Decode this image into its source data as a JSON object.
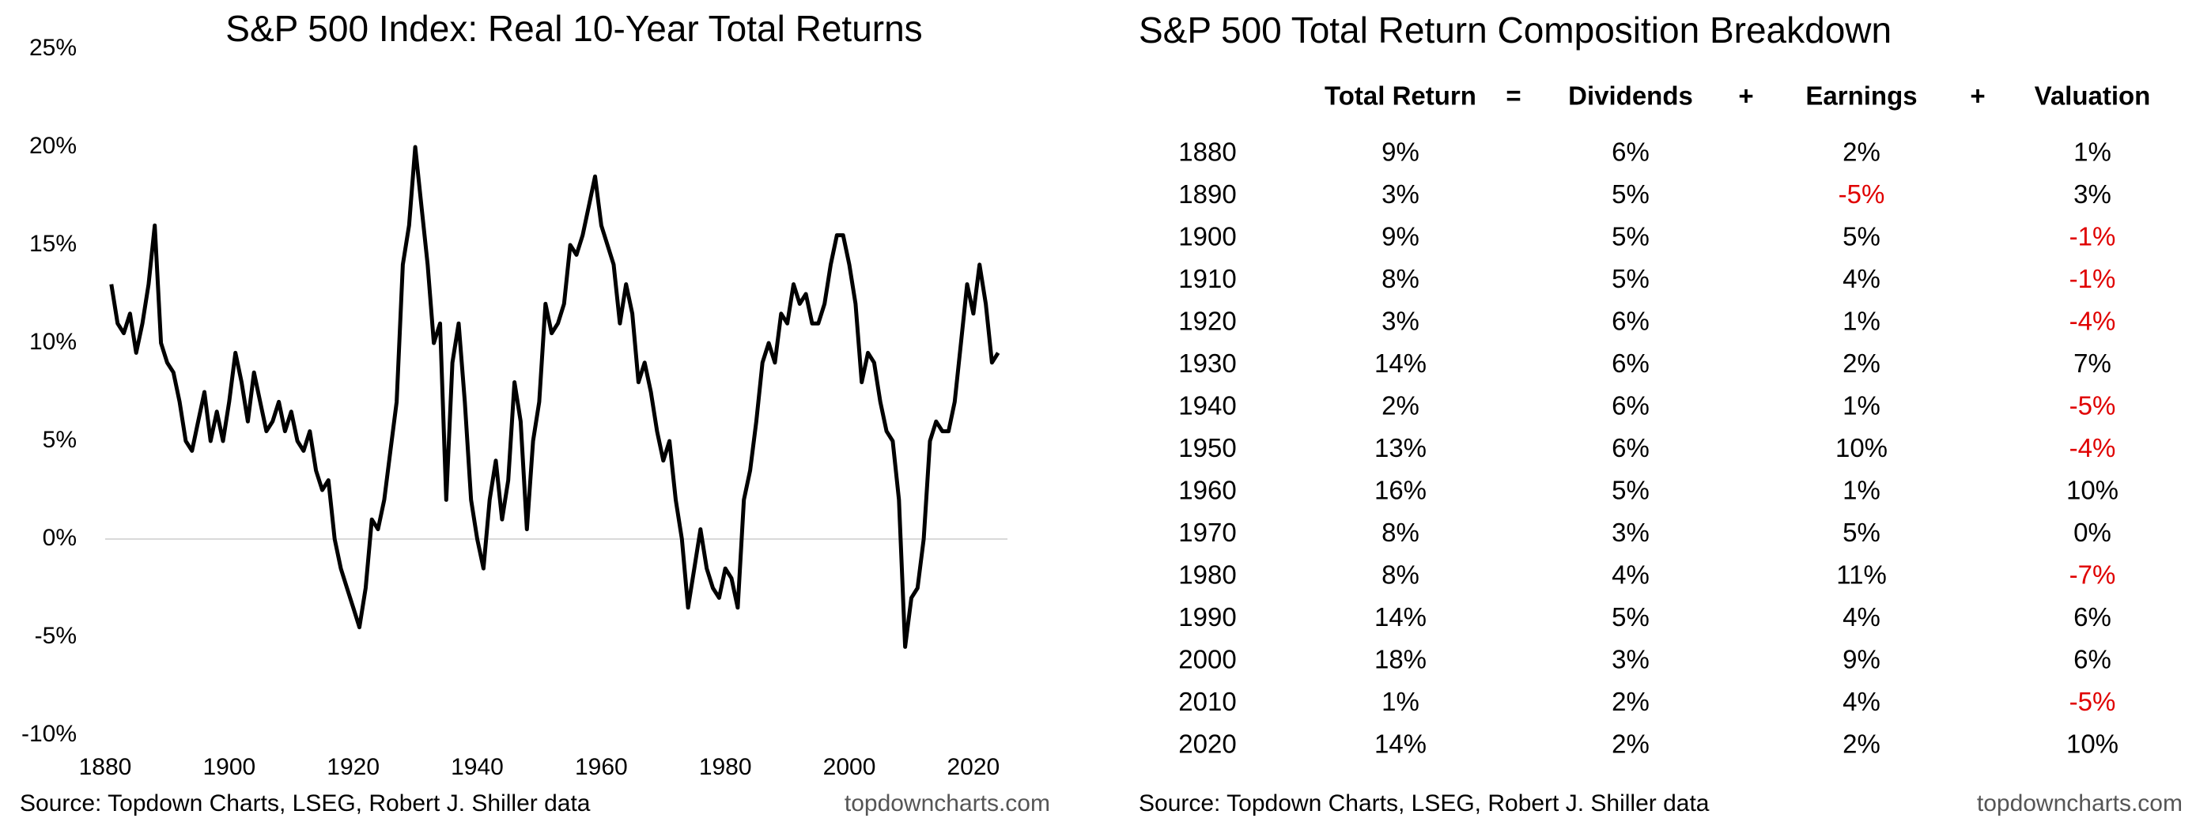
{
  "chart_data": {
    "type": "line",
    "title": "S&P 500 Index: Real 10-Year Total Returns",
    "source": "Source: Topdown Charts, LSEG, Robert J. Shiller data",
    "website": "topdowncharts.com",
    "x": [
      1881,
      1882,
      1883,
      1884,
      1885,
      1886,
      1887,
      1888,
      1889,
      1890,
      1891,
      1892,
      1893,
      1894,
      1895,
      1896,
      1897,
      1898,
      1899,
      1900,
      1901,
      1902,
      1903,
      1904,
      1905,
      1906,
      1907,
      1908,
      1909,
      1910,
      1911,
      1912,
      1913,
      1914,
      1915,
      1916,
      1917,
      1918,
      1919,
      1920,
      1921,
      1922,
      1923,
      1924,
      1925,
      1926,
      1927,
      1928,
      1929,
      1930,
      1931,
      1932,
      1933,
      1934,
      1935,
      1936,
      1937,
      1938,
      1939,
      1940,
      1941,
      1942,
      1943,
      1944,
      1945,
      1946,
      1947,
      1948,
      1949,
      1950,
      1951,
      1952,
      1953,
      1954,
      1955,
      1956,
      1957,
      1958,
      1959,
      1960,
      1961,
      1962,
      1963,
      1964,
      1965,
      1966,
      1967,
      1968,
      1969,
      1970,
      1971,
      1972,
      1973,
      1974,
      1975,
      1976,
      1977,
      1978,
      1979,
      1980,
      1981,
      1982,
      1983,
      1984,
      1985,
      1986,
      1987,
      1988,
      1989,
      1990,
      1991,
      1992,
      1993,
      1994,
      1995,
      1996,
      1997,
      1998,
      1999,
      2000,
      2001,
      2002,
      2003,
      2004,
      2005,
      2006,
      2007,
      2008,
      2009,
      2010,
      2011,
      2012,
      2013,
      2014,
      2015,
      2016,
      2017,
      2018,
      2019,
      2020,
      2021,
      2022,
      2023,
      2024
    ],
    "series": [
      {
        "name": "Real 10-Year Total Return",
        "color": "#000000",
        "values": [
          13,
          11,
          10.5,
          11.5,
          9.5,
          11,
          13,
          16,
          10,
          9,
          8.5,
          7,
          5,
          4.5,
          6,
          7.5,
          5,
          6.5,
          5,
          7,
          9.5,
          8,
          6,
          8.5,
          7,
          5.5,
          6,
          7,
          5.5,
          6.5,
          5,
          4.5,
          5.5,
          3.5,
          2.5,
          3,
          0,
          -1.5,
          -2.5,
          -3.5,
          -4.5,
          -2.5,
          1,
          0.5,
          2,
          4.5,
          7,
          14,
          16,
          20,
          17,
          14,
          10,
          11,
          2,
          9,
          11,
          7,
          2,
          0,
          -1.5,
          2,
          4,
          1,
          3,
          8,
          6,
          0.5,
          5,
          7,
          12,
          10.5,
          11,
          12,
          15,
          14.5,
          15.5,
          17,
          18.5,
          16,
          15,
          14,
          11,
          13,
          11.5,
          8,
          9,
          7.5,
          5.5,
          4,
          5,
          2,
          0,
          -3.5,
          -1.5,
          0.5,
          -1.5,
          -2.5,
          -3,
          -1.5,
          -2,
          -3.5,
          2,
          3.5,
          6,
          9,
          10,
          9,
          11.5,
          11,
          13,
          12,
          12.5,
          11,
          11,
          12,
          14,
          15.5,
          15.5,
          14,
          12,
          8,
          9.5,
          9,
          7,
          5.5,
          5,
          2,
          -5.5,
          -3,
          -2.5,
          0,
          5,
          6,
          5.5,
          5.5,
          7,
          10,
          13,
          11.5,
          14,
          12,
          9,
          9.5
        ]
      }
    ],
    "xlim": [
      1880,
      2025.5
    ],
    "xticks": [
      1880,
      1900,
      1920,
      1940,
      1960,
      1980,
      2000,
      2020
    ],
    "ylim": [
      -10,
      25
    ],
    "yticks": [
      {
        "value": -10,
        "label": "-10%"
      },
      {
        "value": -5,
        "label": "-5%"
      },
      {
        "value": 0,
        "label": "0%"
      },
      {
        "value": 5,
        "label": "5%"
      },
      {
        "value": 10,
        "label": "10%"
      },
      {
        "value": 15,
        "label": "15%"
      },
      {
        "value": 20,
        "label": "20%"
      },
      {
        "value": 25,
        "label": "25%"
      }
    ],
    "zero_line": true
  },
  "table": {
    "title": "S&P 500 Total Return Composition Breakdown",
    "source": "Source: Topdown Charts, LSEG, Robert J. Shiller data",
    "website": "topdowncharts.com",
    "header": [
      "Total Return",
      "=",
      "Dividends",
      "+",
      "Earnings",
      "+",
      "Valuation"
    ],
    "negative_color": "#e00000",
    "rows": [
      [
        "1880",
        "9%",
        "6%",
        "2%",
        "1%"
      ],
      [
        "1890",
        "3%",
        "5%",
        "-5%",
        "3%"
      ],
      [
        "1900",
        "9%",
        "5%",
        "5%",
        "-1%"
      ],
      [
        "1910",
        "8%",
        "5%",
        "4%",
        "-1%"
      ],
      [
        "1920",
        "3%",
        "6%",
        "1%",
        "-4%"
      ],
      [
        "1930",
        "14%",
        "6%",
        "2%",
        "7%"
      ],
      [
        "1940",
        "2%",
        "6%",
        "1%",
        "-5%"
      ],
      [
        "1950",
        "13%",
        "6%",
        "10%",
        "-4%"
      ],
      [
        "1960",
        "16%",
        "5%",
        "1%",
        "10%"
      ],
      [
        "1970",
        "8%",
        "3%",
        "5%",
        "0%"
      ],
      [
        "1980",
        "8%",
        "4%",
        "11%",
        "-7%"
      ],
      [
        "1990",
        "14%",
        "5%",
        "4%",
        "6%"
      ],
      [
        "2000",
        "18%",
        "3%",
        "9%",
        "6%"
      ],
      [
        "2010",
        "1%",
        "2%",
        "4%",
        "-5%"
      ],
      [
        "2020",
        "14%",
        "2%",
        "2%",
        "10%"
      ]
    ]
  }
}
